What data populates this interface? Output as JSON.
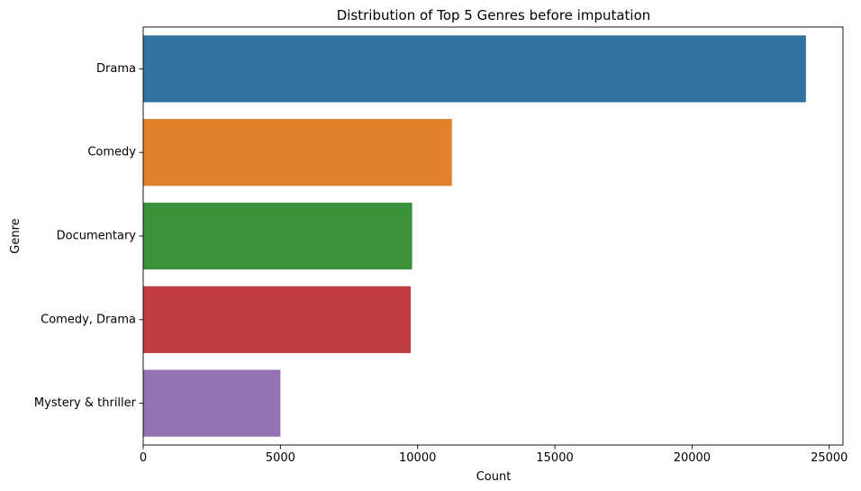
{
  "chart_data": {
    "type": "bar",
    "orientation": "horizontal",
    "title": "Distribution of Top 5 Genres before imputation",
    "xlabel": "Count",
    "ylabel": "Genre",
    "categories": [
      "Drama",
      "Comedy",
      "Documentary",
      "Comedy, Drama",
      "Mystery & thriller"
    ],
    "values": [
      24150,
      11250,
      9800,
      9750,
      5000
    ],
    "colors": [
      "#3274a1",
      "#e1812c",
      "#3a923a",
      "#c03d3e",
      "#9372b2"
    ],
    "xlim": [
      0,
      25500
    ],
    "xticks": [
      0,
      5000,
      10000,
      15000,
      20000,
      25000
    ],
    "xtick_labels": [
      "0",
      "5000",
      "10000",
      "15000",
      "20000",
      "25000"
    ],
    "grid": false,
    "legend": "none"
  }
}
